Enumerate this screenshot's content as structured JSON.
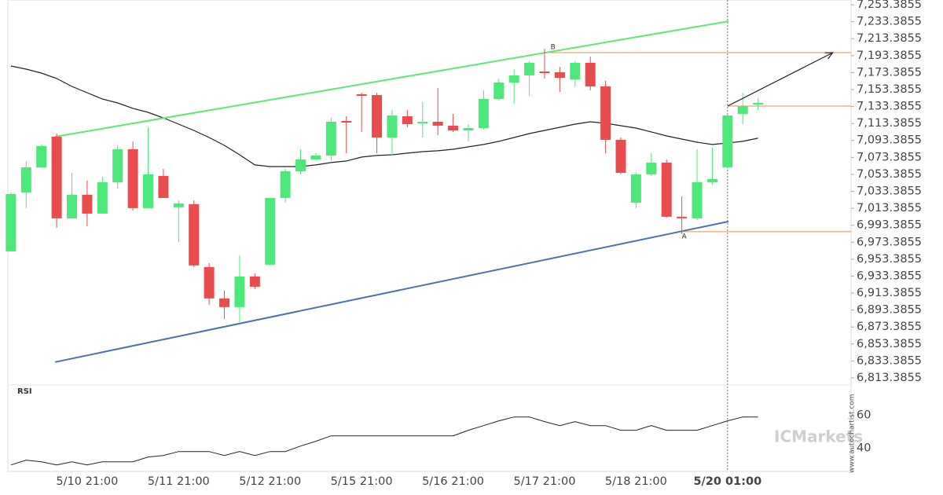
{
  "chart_data": [
    {
      "type": "candlestick",
      "categories": [
        null,
        null,
        null,
        null,
        null,
        "5/10 21:00",
        null,
        null,
        null,
        null,
        null,
        "5/11 21:00",
        null,
        null,
        null,
        null,
        null,
        "5/12 21:00",
        null,
        null,
        null,
        null,
        null,
        "5/15 21:00",
        null,
        null,
        null,
        null,
        null,
        "5/16 21:00",
        null,
        null,
        null,
        null,
        null,
        "5/17 21:00",
        null,
        null,
        null,
        null,
        null,
        "5/18 21:00",
        null,
        null,
        null,
        null,
        null,
        "5/20 01:00",
        null,
        null
      ],
      "open": [
        6962.6,
        7032.1,
        7061.7,
        7097.8,
        7001.5,
        7029.3,
        7007.1,
        7044.1,
        7083.0,
        7013.6,
        7051.5,
        7014.5,
        7018.2,
        6944.1,
        6907.1,
        6896.9,
        6933.0,
        6946.9,
        7025.6,
        7057.1,
        7071.0,
        7075.6,
        7116.3,
        7147.8,
        7146.9,
        7096.9,
        7121.9,
        7113.6,
        7115.4,
        7110.8,
        7105.2,
        7108.0,
        7142.3,
        7161.7,
        7170.1,
        7174.7,
        7173.8,
        7165.4,
        7184.9,
        7157.1,
        7094.1,
        7020.0,
        7053.4,
        7067.3,
        7003.4,
        7001.5,
        7044.1,
        7061.7,
        7124.7,
        7136.7
      ],
      "high": [
        7032.0,
        7069.0,
        7088.6,
        7101.5,
        7055.0,
        7046.0,
        7050.6,
        7087.6,
        7092.3,
        7108.9,
        7059.9,
        7022.8,
        7022.8,
        6948.7,
        6916.3,
        6958.0,
        6936.7,
        7025.6,
        7059.9,
        7083.0,
        7078.4,
        7120.0,
        7121.9,
        7149.7,
        7149.7,
        7129.3,
        7129.3,
        7138.6,
        7155.2,
        7124.7,
        7112.6,
        7152.5,
        7166.4,
        7177.5,
        7186.7,
        7201.5,
        7180.2,
        7186.7,
        7192.3,
        7163.6,
        7096.9,
        7055.2,
        7078.4,
        7071.0,
        7027.4,
        7083.0,
        7084.8,
        7124.7,
        7149.7,
        7143.2
      ],
      "low": [
        6962.6,
        7013.6,
        7061.7,
        6990.4,
        7001.5,
        6992.3,
        7007.1,
        7036.7,
        7010.8,
        7013.6,
        7025.6,
        6973.7,
        6944.1,
        6899.7,
        6883.0,
        6879.3,
        6918.2,
        6946.0,
        7020.0,
        7053.4,
        7069.2,
        7069.2,
        7078.4,
        7103.4,
        7078.4,
        7075.6,
        7108.9,
        7096.9,
        7099.7,
        7103.4,
        7092.3,
        7106.2,
        7140.4,
        7136.7,
        7145.9,
        7166.4,
        7150.6,
        7157.1,
        7152.5,
        7078.4,
        7053.4,
        7013.6,
        7051.5,
        7002.4,
        6983.0,
        6999.6,
        7041.3,
        7059.9,
        7112.6,
        7129.3
      ],
      "close": [
        7030.2,
        7061.7,
        7086.7,
        7001.5,
        7029.3,
        7007.1,
        7044.1,
        7083.0,
        7013.6,
        7053.4,
        7025.6,
        7019.1,
        6946.0,
        6907.1,
        6896.9,
        6933.0,
        6920.9,
        7025.6,
        7057.1,
        7071.0,
        7075.6,
        7115.4,
        7114.5,
        7146.9,
        7096.9,
        7122.8,
        7112.6,
        7115.4,
        7110.8,
        7105.2,
        7108.0,
        7142.3,
        7161.7,
        7170.1,
        7184.9,
        7172.8,
        7167.3,
        7184.9,
        7157.1,
        7094.1,
        7055.2,
        7053.4,
        7067.3,
        7003.4,
        7002.4,
        7044.1,
        7047.8,
        7122.8,
        7134.0,
        7137.6
      ],
      "up_color": "#4de87a",
      "down_color": "#e84c4c",
      "ma": {
        "color": "#222222",
        "values": [
          7181.2,
          7177.5,
          7172.8,
          7166.4,
          7157.1,
          7149.7,
          7142.3,
          7137.6,
          7131.2,
          7126.5,
          7120.0,
          7112.6,
          7105.2,
          7096.9,
          7087.6,
          7076.5,
          7064.5,
          7062.6,
          7062.6,
          7062.6,
          7064.5,
          7067.3,
          7069.2,
          7073.8,
          7075.6,
          7076.5,
          7078.4,
          7080.2,
          7081.2,
          7083.0,
          7085.8,
          7088.6,
          7092.3,
          7096.9,
          7101.5,
          7105.2,
          7108.9,
          7112.6,
          7115.4,
          7113.6,
          7110.8,
          7108.0,
          7103.4,
          7098.7,
          7095.0,
          7091.3,
          7088.6,
          7090.4,
          7092.3,
          7096.0
        ]
      },
      "trend_lines": [
        {
          "color": "#5ee879",
          "x": [
            2.9,
            47.06
          ],
          "values": [
            7097.8,
            7233.9
          ]
        },
        {
          "color": "#4a72b0",
          "x": [
            2.9,
            47.06
          ],
          "values": [
            6832.1,
            6997.8
          ]
        }
      ],
      "levels": [
        {
          "label": "B",
          "x": 35.4,
          "value": 7196.9
        },
        {
          "label": "A",
          "x": 44.0,
          "value": 6985.8
        },
        {
          "x": 47.0,
          "value": 7133.9
        }
      ],
      "level_color": "#e8904a",
      "arrow": {
        "x": [
          47.0,
          53.9
        ],
        "values": [
          7133.9,
          7196.9
        ]
      },
      "current_x": 47,
      "xlim": [
        -0.2,
        55.1
      ],
      "ylim": [
        6805,
        7259
      ],
      "yticks": [
        {
          "value": 7253.3855,
          "label": "7,253.3855"
        },
        {
          "value": 7233.3855,
          "label": "7,233.3855"
        },
        {
          "value": 7213.3855,
          "label": "7,213.3855"
        },
        {
          "value": 7193.3855,
          "label": "7,193.3855"
        },
        {
          "value": 7173.3855,
          "label": "7,173.3855"
        },
        {
          "value": 7153.3855,
          "label": "7,153.3855"
        },
        {
          "value": 7133.3855,
          "label": "7,133.3855"
        },
        {
          "value": 7113.3855,
          "label": "7,113.3855"
        },
        {
          "value": 7093.3855,
          "label": "7,093.3855"
        },
        {
          "value": 7073.3855,
          "label": "7,073.3855"
        },
        {
          "value": 7053.3855,
          "label": "7,053.3855"
        },
        {
          "value": 7033.3855,
          "label": "7,033.3855"
        },
        {
          "value": 7013.3855,
          "label": "7,013.3855"
        },
        {
          "value": 6993.3855,
          "label": "6,993.3855"
        },
        {
          "value": 6973.3855,
          "label": "6,973.3855"
        },
        {
          "value": 6953.3855,
          "label": "6,953.3855"
        },
        {
          "value": 6933.3855,
          "label": "6,933.3855"
        },
        {
          "value": 6913.3855,
          "label": "6,913.3855"
        },
        {
          "value": 6893.3855,
          "label": "6,893.3855"
        },
        {
          "value": 6873.3855,
          "label": "6,873.3855"
        },
        {
          "value": 6853.3855,
          "label": "6,853.3855"
        },
        {
          "value": 6833.3855,
          "label": "6,833.3855"
        },
        {
          "value": 6813.3855,
          "label": "6,813.3855"
        }
      ],
      "watermark": "ICMarkets",
      "source": "www.autochartist.com"
    },
    {
      "type": "line",
      "title": "RSI",
      "color": "#222222",
      "values": [
        30.0,
        32.9,
        31.9,
        30.0,
        31.9,
        30.0,
        31.9,
        31.9,
        31.9,
        34.8,
        35.7,
        38.1,
        38.1,
        38.1,
        35.7,
        38.1,
        35.7,
        38.1,
        38.1,
        41.4,
        44.3,
        47.6,
        47.6,
        47.6,
        47.6,
        47.6,
        47.6,
        47.6,
        47.6,
        47.6,
        51.0,
        53.8,
        56.7,
        59.0,
        59.0,
        56.2,
        53.8,
        56.2,
        53.8,
        53.8,
        51.0,
        51.0,
        53.8,
        51.0,
        51.0,
        51.0,
        53.8,
        56.7,
        59.0,
        59.0
      ],
      "ylim": [
        27,
        76
      ],
      "yticks": [
        40,
        60
      ]
    }
  ]
}
